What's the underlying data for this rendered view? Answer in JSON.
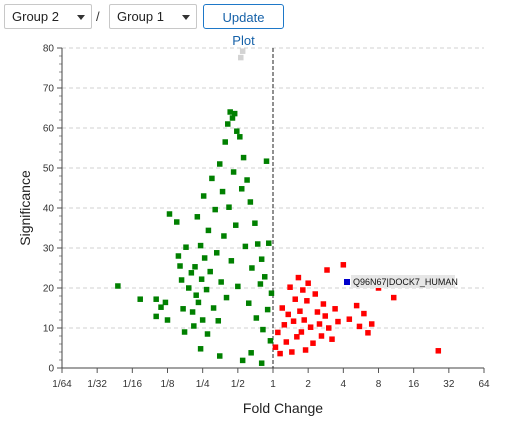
{
  "toolbar": {
    "group_a": {
      "value": "Group 2"
    },
    "separator": "/",
    "group_b": {
      "value": "Group 1"
    },
    "update_button": "Update Plot"
  },
  "colors": {
    "down": "#008000",
    "up": "#ff0000",
    "highlight": "#0000cc",
    "faded": "#d3d3d3",
    "button_accent": "#1e78c8"
  },
  "chart_data": {
    "type": "scatter",
    "title": "",
    "xlabel": "Fold Change",
    "ylabel": "Significance",
    "x_scale": "log2",
    "xlim": [
      0.015625,
      64
    ],
    "ylim": [
      0,
      80
    ],
    "x_tick_labels": [
      "1/64",
      "1/32",
      "1/16",
      "1/8",
      "1/4",
      "1/2",
      "1",
      "2",
      "4",
      "8",
      "16",
      "32",
      "64"
    ],
    "x_tick_values": [
      0.015625,
      0.03125,
      0.0625,
      0.125,
      0.25,
      0.5,
      1,
      2,
      4,
      8,
      16,
      32,
      64
    ],
    "y_tick_values": [
      0,
      10,
      20,
      30,
      40,
      50,
      60,
      70,
      80
    ],
    "grid": true,
    "reference_line_x": 1,
    "highlight": {
      "label": "Q96N67|DOCK7_HUMAN",
      "x": 4.3,
      "y": 21.5
    },
    "series": [
      {
        "group": "down",
        "points": [
          [
            0.047,
            20.5
          ],
          [
            0.073,
            17.2
          ],
          [
            0.1,
            17.2
          ],
          [
            0.11,
            15.2
          ],
          [
            0.12,
            16.4
          ],
          [
            0.125,
            12.0
          ],
          [
            0.13,
            38.5
          ],
          [
            0.15,
            36.5
          ],
          [
            0.155,
            28.0
          ],
          [
            0.16,
            25.5
          ],
          [
            0.165,
            22.0
          ],
          [
            0.17,
            14.8
          ],
          [
            0.175,
            9.0
          ],
          [
            0.18,
            30.2
          ],
          [
            0.19,
            20.0
          ],
          [
            0.2,
            23.8
          ],
          [
            0.205,
            14.0
          ],
          [
            0.21,
            10.5
          ],
          [
            0.215,
            25.3
          ],
          [
            0.22,
            18.2
          ],
          [
            0.225,
            37.8
          ],
          [
            0.23,
            16.4
          ],
          [
            0.24,
            30.6
          ],
          [
            0.245,
            22.2
          ],
          [
            0.25,
            12.0
          ],
          [
            0.255,
            43.0
          ],
          [
            0.26,
            27.5
          ],
          [
            0.27,
            19.6
          ],
          [
            0.275,
            8.5
          ],
          [
            0.28,
            34.4
          ],
          [
            0.29,
            24.1
          ],
          [
            0.3,
            47.4
          ],
          [
            0.31,
            15.0
          ],
          [
            0.32,
            39.6
          ],
          [
            0.33,
            28.8
          ],
          [
            0.34,
            11.8
          ],
          [
            0.35,
            51.0
          ],
          [
            0.36,
            21.5
          ],
          [
            0.37,
            44.1
          ],
          [
            0.38,
            33.0
          ],
          [
            0.39,
            56.5
          ],
          [
            0.4,
            17.6
          ],
          [
            0.41,
            61.0
          ],
          [
            0.42,
            40.2
          ],
          [
            0.43,
            64.0
          ],
          [
            0.44,
            26.8
          ],
          [
            0.45,
            62.5
          ],
          [
            0.46,
            49.0
          ],
          [
            0.47,
            63.6
          ],
          [
            0.48,
            35.7
          ],
          [
            0.49,
            59.2
          ],
          [
            0.5,
            20.4
          ],
          [
            0.52,
            57.8
          ],
          [
            0.54,
            44.8
          ],
          [
            0.56,
            52.6
          ],
          [
            0.58,
            30.4
          ],
          [
            0.6,
            47.0
          ],
          [
            0.62,
            16.2
          ],
          [
            0.64,
            41.5
          ],
          [
            0.66,
            25.0
          ],
          [
            0.7,
            36.2
          ],
          [
            0.72,
            12.5
          ],
          [
            0.74,
            31.0
          ],
          [
            0.78,
            21.0
          ],
          [
            0.8,
            27.2
          ],
          [
            0.82,
            9.6
          ],
          [
            0.85,
            22.8
          ],
          [
            0.88,
            51.7
          ],
          [
            0.9,
            14.6
          ],
          [
            0.92,
            31.2
          ],
          [
            0.95,
            6.8
          ],
          [
            0.97,
            18.7
          ],
          [
            0.1,
            12.9
          ],
          [
            0.24,
            4.8
          ],
          [
            0.35,
            3.0
          ],
          [
            0.55,
            1.9
          ],
          [
            0.65,
            3.8
          ],
          [
            0.8,
            1.2
          ]
        ]
      },
      {
        "group": "up",
        "points": [
          [
            1.05,
            5.2
          ],
          [
            1.1,
            8.9
          ],
          [
            1.15,
            3.6
          ],
          [
            1.2,
            15.0
          ],
          [
            1.25,
            10.8
          ],
          [
            1.3,
            6.5
          ],
          [
            1.35,
            13.4
          ],
          [
            1.4,
            20.2
          ],
          [
            1.45,
            4.0
          ],
          [
            1.5,
            11.7
          ],
          [
            1.55,
            17.2
          ],
          [
            1.6,
            7.8
          ],
          [
            1.65,
            22.6
          ],
          [
            1.7,
            14.2
          ],
          [
            1.75,
            9.0
          ],
          [
            1.8,
            19.5
          ],
          [
            1.85,
            12.0
          ],
          [
            1.9,
            4.5
          ],
          [
            1.95,
            16.8
          ],
          [
            2.0,
            21.2
          ],
          [
            2.1,
            10.2
          ],
          [
            2.2,
            6.2
          ],
          [
            2.3,
            18.5
          ],
          [
            2.4,
            14.0
          ],
          [
            2.5,
            11.0
          ],
          [
            2.6,
            8.0
          ],
          [
            2.7,
            16.0
          ],
          [
            2.8,
            13.0
          ],
          [
            2.9,
            24.5
          ],
          [
            3.0,
            10.0
          ],
          [
            3.2,
            7.2
          ],
          [
            3.4,
            14.8
          ],
          [
            3.6,
            11.6
          ],
          [
            4.0,
            25.8
          ],
          [
            4.5,
            12.2
          ],
          [
            5.2,
            15.6
          ],
          [
            5.5,
            10.4
          ],
          [
            6.0,
            13.6
          ],
          [
            6.5,
            8.8
          ],
          [
            7.0,
            11.0
          ],
          [
            8.0,
            20.0
          ],
          [
            10.8,
            17.6
          ],
          [
            26.0,
            4.3
          ]
        ]
      },
      {
        "group": "faded",
        "points": [
          [
            0.55,
            79.2
          ],
          [
            0.53,
            77.6
          ]
        ]
      }
    ]
  }
}
